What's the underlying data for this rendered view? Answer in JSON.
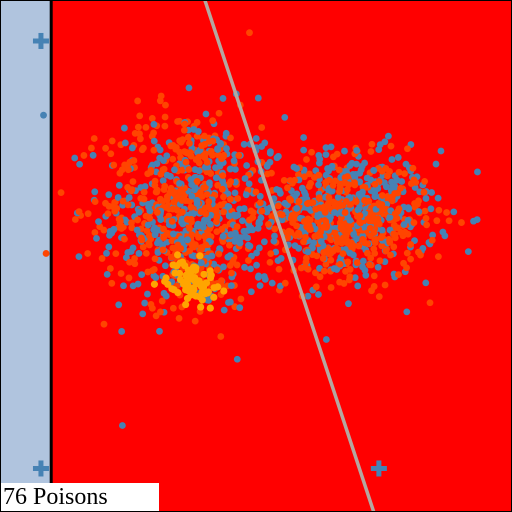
{
  "caption": "76 Poisons",
  "colors": {
    "left_region": "#b0c4de",
    "right_region": "#ff0000",
    "boundary": "#000000",
    "secondary_line": "#b5a7a0",
    "blue_points": "#4682b4",
    "orange_points": "#ff4500",
    "poison_points": "#ffa500",
    "frame": "#000000"
  },
  "chart_data": {
    "type": "scatter",
    "title": "",
    "xlabel": "",
    "ylabel": "",
    "grid": false,
    "legend": "none",
    "regions": [
      {
        "name": "",
        "color": "#b0c4de",
        "x_range": [
          0.0,
          0.1
        ]
      },
      {
        "name": "",
        "color": "#ff0000",
        "x_range": [
          0.1,
          1.0
        ]
      }
    ],
    "lines": [
      {
        "color": "#000000",
        "x1": 0.1,
        "y1": 0.0,
        "x2": 0.1,
        "y2": 1.0
      },
      {
        "color": "#b5a7a0",
        "x1": 0.4,
        "y1": 1.0,
        "x2": 0.73,
        "y2": 0.0
      }
    ],
    "plus_markers": [
      {
        "x": 0.08,
        "y": 0.92,
        "color": "#4682b4"
      },
      {
        "x": 0.08,
        "y": 0.085,
        "color": "#4682b4"
      },
      {
        "x": 0.74,
        "y": 0.085,
        "color": "#4682b4"
      }
    ],
    "series": [
      {
        "name": "",
        "color": "#4682b4",
        "approx_count": 800,
        "clusters": [
          {
            "center": [
              0.38,
              0.58
            ],
            "spread": [
              0.13,
              0.14
            ]
          },
          {
            "center": [
              0.68,
              0.58
            ],
            "spread": [
              0.12,
              0.09
            ]
          }
        ]
      },
      {
        "name": "",
        "color": "#ff4500",
        "approx_count": 900,
        "clusters": [
          {
            "center": [
              0.36,
              0.6
            ],
            "spread": [
              0.11,
              0.14
            ]
          },
          {
            "center": [
              0.68,
              0.57
            ],
            "spread": [
              0.11,
              0.08
            ]
          }
        ]
      },
      {
        "name": "",
        "color": "#ffa500",
        "count": 76,
        "clusters": [
          {
            "center": [
              0.375,
              0.45
            ],
            "spread": [
              0.035,
              0.03
            ]
          }
        ]
      }
    ],
    "outliers": [
      {
        "x": 0.085,
        "y": 0.775,
        "color": "#4682b4"
      },
      {
        "x": 0.09,
        "y": 0.505,
        "color": "#ff4500"
      }
    ]
  }
}
